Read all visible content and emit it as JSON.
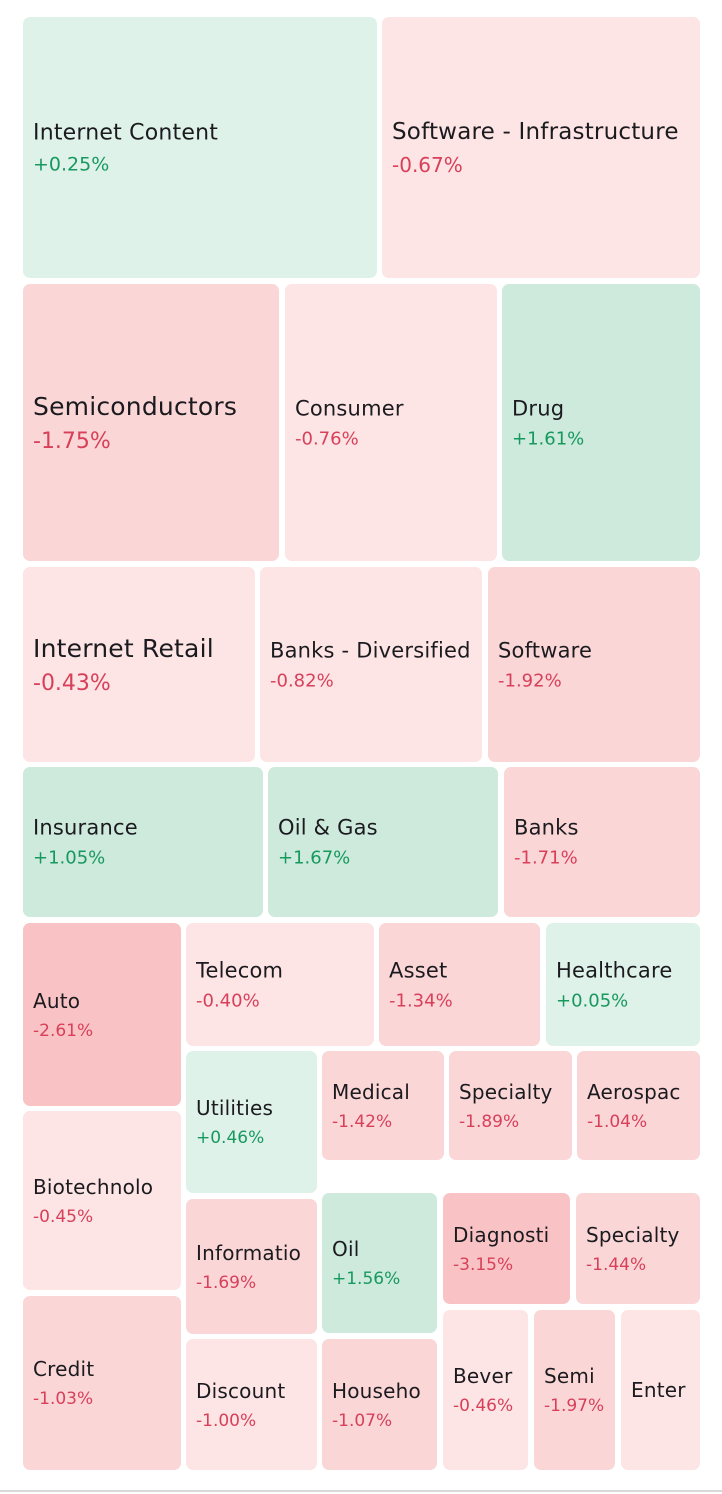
{
  "chart_data": {
    "type": "treemap",
    "colors": {
      "positive_text": "#17995e",
      "negative_text": "#d8405a",
      "label_text": "#1b1b1f"
    },
    "tiles": [
      {
        "id": "internet-content",
        "name": "Internet Content",
        "change": "+0.25%",
        "value": 0.25,
        "fill": "#dff2ea"
      },
      {
        "id": "software-infrastructure",
        "name": "Software - Infrastructure",
        "change": "-0.67%",
        "value": -0.67,
        "fill": "#fde4e5"
      },
      {
        "id": "semiconductors",
        "name": "Semiconductors",
        "change": "-1.75%",
        "value": -1.75,
        "fill": "#fad6d7"
      },
      {
        "id": "consumer",
        "name": "Consumer",
        "change": "-0.76%",
        "value": -0.76,
        "fill": "#fde4e5"
      },
      {
        "id": "drug",
        "name": "Drug",
        "change": "+1.61%",
        "value": 1.61,
        "fill": "#cdeadd"
      },
      {
        "id": "internet-retail",
        "name": "Internet Retail",
        "change": "-0.43%",
        "value": -0.43,
        "fill": "#fde4e5"
      },
      {
        "id": "banks-diversified",
        "name": "Banks - Diversified",
        "change": "-0.82%",
        "value": -0.82,
        "fill": "#fde4e5"
      },
      {
        "id": "software",
        "name": "Software",
        "change": "-1.92%",
        "value": -1.92,
        "fill": "#fad6d7"
      },
      {
        "id": "insurance",
        "name": "Insurance",
        "change": "+1.05%",
        "value": 1.05,
        "fill": "#cdeadd"
      },
      {
        "id": "oil-and-gas",
        "name": "Oil & Gas",
        "change": "+1.67%",
        "value": 1.67,
        "fill": "#cdeadd"
      },
      {
        "id": "banks",
        "name": "Banks",
        "change": "-1.71%",
        "value": -1.71,
        "fill": "#fad6d7"
      },
      {
        "id": "auto",
        "name": "Auto",
        "change": "-2.61%",
        "value": -2.61,
        "fill": "#f9c3c5"
      },
      {
        "id": "telecom",
        "name": "Telecom",
        "change": "-0.40%",
        "value": -0.4,
        "fill": "#fde4e5"
      },
      {
        "id": "asset",
        "name": "Asset",
        "change": "-1.34%",
        "value": -1.34,
        "fill": "#fad6d7"
      },
      {
        "id": "healthcare",
        "name": "Healthcare",
        "change": "+0.05%",
        "value": 0.05,
        "fill": "#dff2ea"
      },
      {
        "id": "utilities",
        "name": "Utilities",
        "change": "+0.46%",
        "value": 0.46,
        "fill": "#dff2ea"
      },
      {
        "id": "medical",
        "name": "Medical",
        "change": "-1.42%",
        "value": -1.42,
        "fill": "#fad6d7"
      },
      {
        "id": "specialty-1",
        "name": "Specialty",
        "change": "-1.89%",
        "value": -1.89,
        "fill": "#fad6d7"
      },
      {
        "id": "aerospace",
        "name": "Aerospac",
        "change": "-1.04%",
        "value": -1.04,
        "fill": "#fad6d7"
      },
      {
        "id": "biotechnology",
        "name": "Biotechnolo",
        "change": "-0.45%",
        "value": -0.45,
        "fill": "#fde4e5"
      },
      {
        "id": "information",
        "name": "Informatio",
        "change": "-1.69%",
        "value": -1.69,
        "fill": "#fad6d7"
      },
      {
        "id": "oil",
        "name": "Oil",
        "change": "+1.56%",
        "value": 1.56,
        "fill": "#cdeadd"
      },
      {
        "id": "diagnostics",
        "name": "Diagnosti",
        "change": "-3.15%",
        "value": -3.15,
        "fill": "#f9c3c5"
      },
      {
        "id": "specialty-2",
        "name": "Specialty",
        "change": "-1.44%",
        "value": -1.44,
        "fill": "#fad6d7"
      },
      {
        "id": "credit",
        "name": "Credit",
        "change": "-1.03%",
        "value": -1.03,
        "fill": "#fad6d7"
      },
      {
        "id": "discount",
        "name": "Discount",
        "change": "-1.00%",
        "value": -1.0,
        "fill": "#fde4e5"
      },
      {
        "id": "household",
        "name": "Househo",
        "change": "-1.07%",
        "value": -1.07,
        "fill": "#fad6d7"
      },
      {
        "id": "beverages",
        "name": "Bever",
        "change": "-0.46%",
        "value": -0.46,
        "fill": "#fde4e5"
      },
      {
        "id": "semi",
        "name": "Semi",
        "change": "-1.97%",
        "value": -1.97,
        "fill": "#fad6d7"
      },
      {
        "id": "entertainment",
        "name": "Enter",
        "change": "",
        "value": null,
        "fill": "#fde4e5"
      }
    ]
  }
}
